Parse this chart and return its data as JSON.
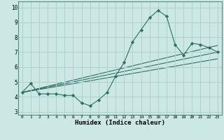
{
  "background_color": "#cce8e4",
  "grid_color": "#b0d0cc",
  "line_color": "#2e6e64",
  "marker_color": "#2e6e64",
  "xlabel": "Humidex (Indice chaleur)",
  "xlim": [
    -0.5,
    23.5
  ],
  "ylim": [
    2.8,
    10.4
  ],
  "xticks": [
    0,
    1,
    2,
    3,
    4,
    5,
    6,
    7,
    8,
    9,
    10,
    11,
    12,
    13,
    14,
    15,
    16,
    17,
    18,
    19,
    20,
    21,
    22,
    23
  ],
  "yticks": [
    3,
    4,
    5,
    6,
    7,
    8,
    9,
    10
  ],
  "curve1_x": [
    0,
    1,
    2,
    3,
    4,
    5,
    6,
    7,
    8,
    9,
    10,
    11,
    12,
    13,
    14,
    15,
    16,
    17,
    18,
    19,
    20,
    21,
    22,
    23
  ],
  "curve1_y": [
    4.3,
    4.9,
    4.2,
    4.2,
    4.2,
    4.1,
    4.1,
    3.6,
    3.4,
    3.8,
    4.3,
    5.4,
    6.3,
    7.7,
    8.5,
    9.3,
    9.8,
    9.4,
    7.5,
    6.8,
    7.6,
    7.5,
    7.3,
    7.0
  ],
  "line1_x": [
    0,
    23
  ],
  "line1_y": [
    4.3,
    7.0
  ],
  "line2_x": [
    0,
    23
  ],
  "line2_y": [
    4.3,
    6.55
  ],
  "line3_x": [
    0,
    23
  ],
  "line3_y": [
    4.3,
    7.45
  ]
}
